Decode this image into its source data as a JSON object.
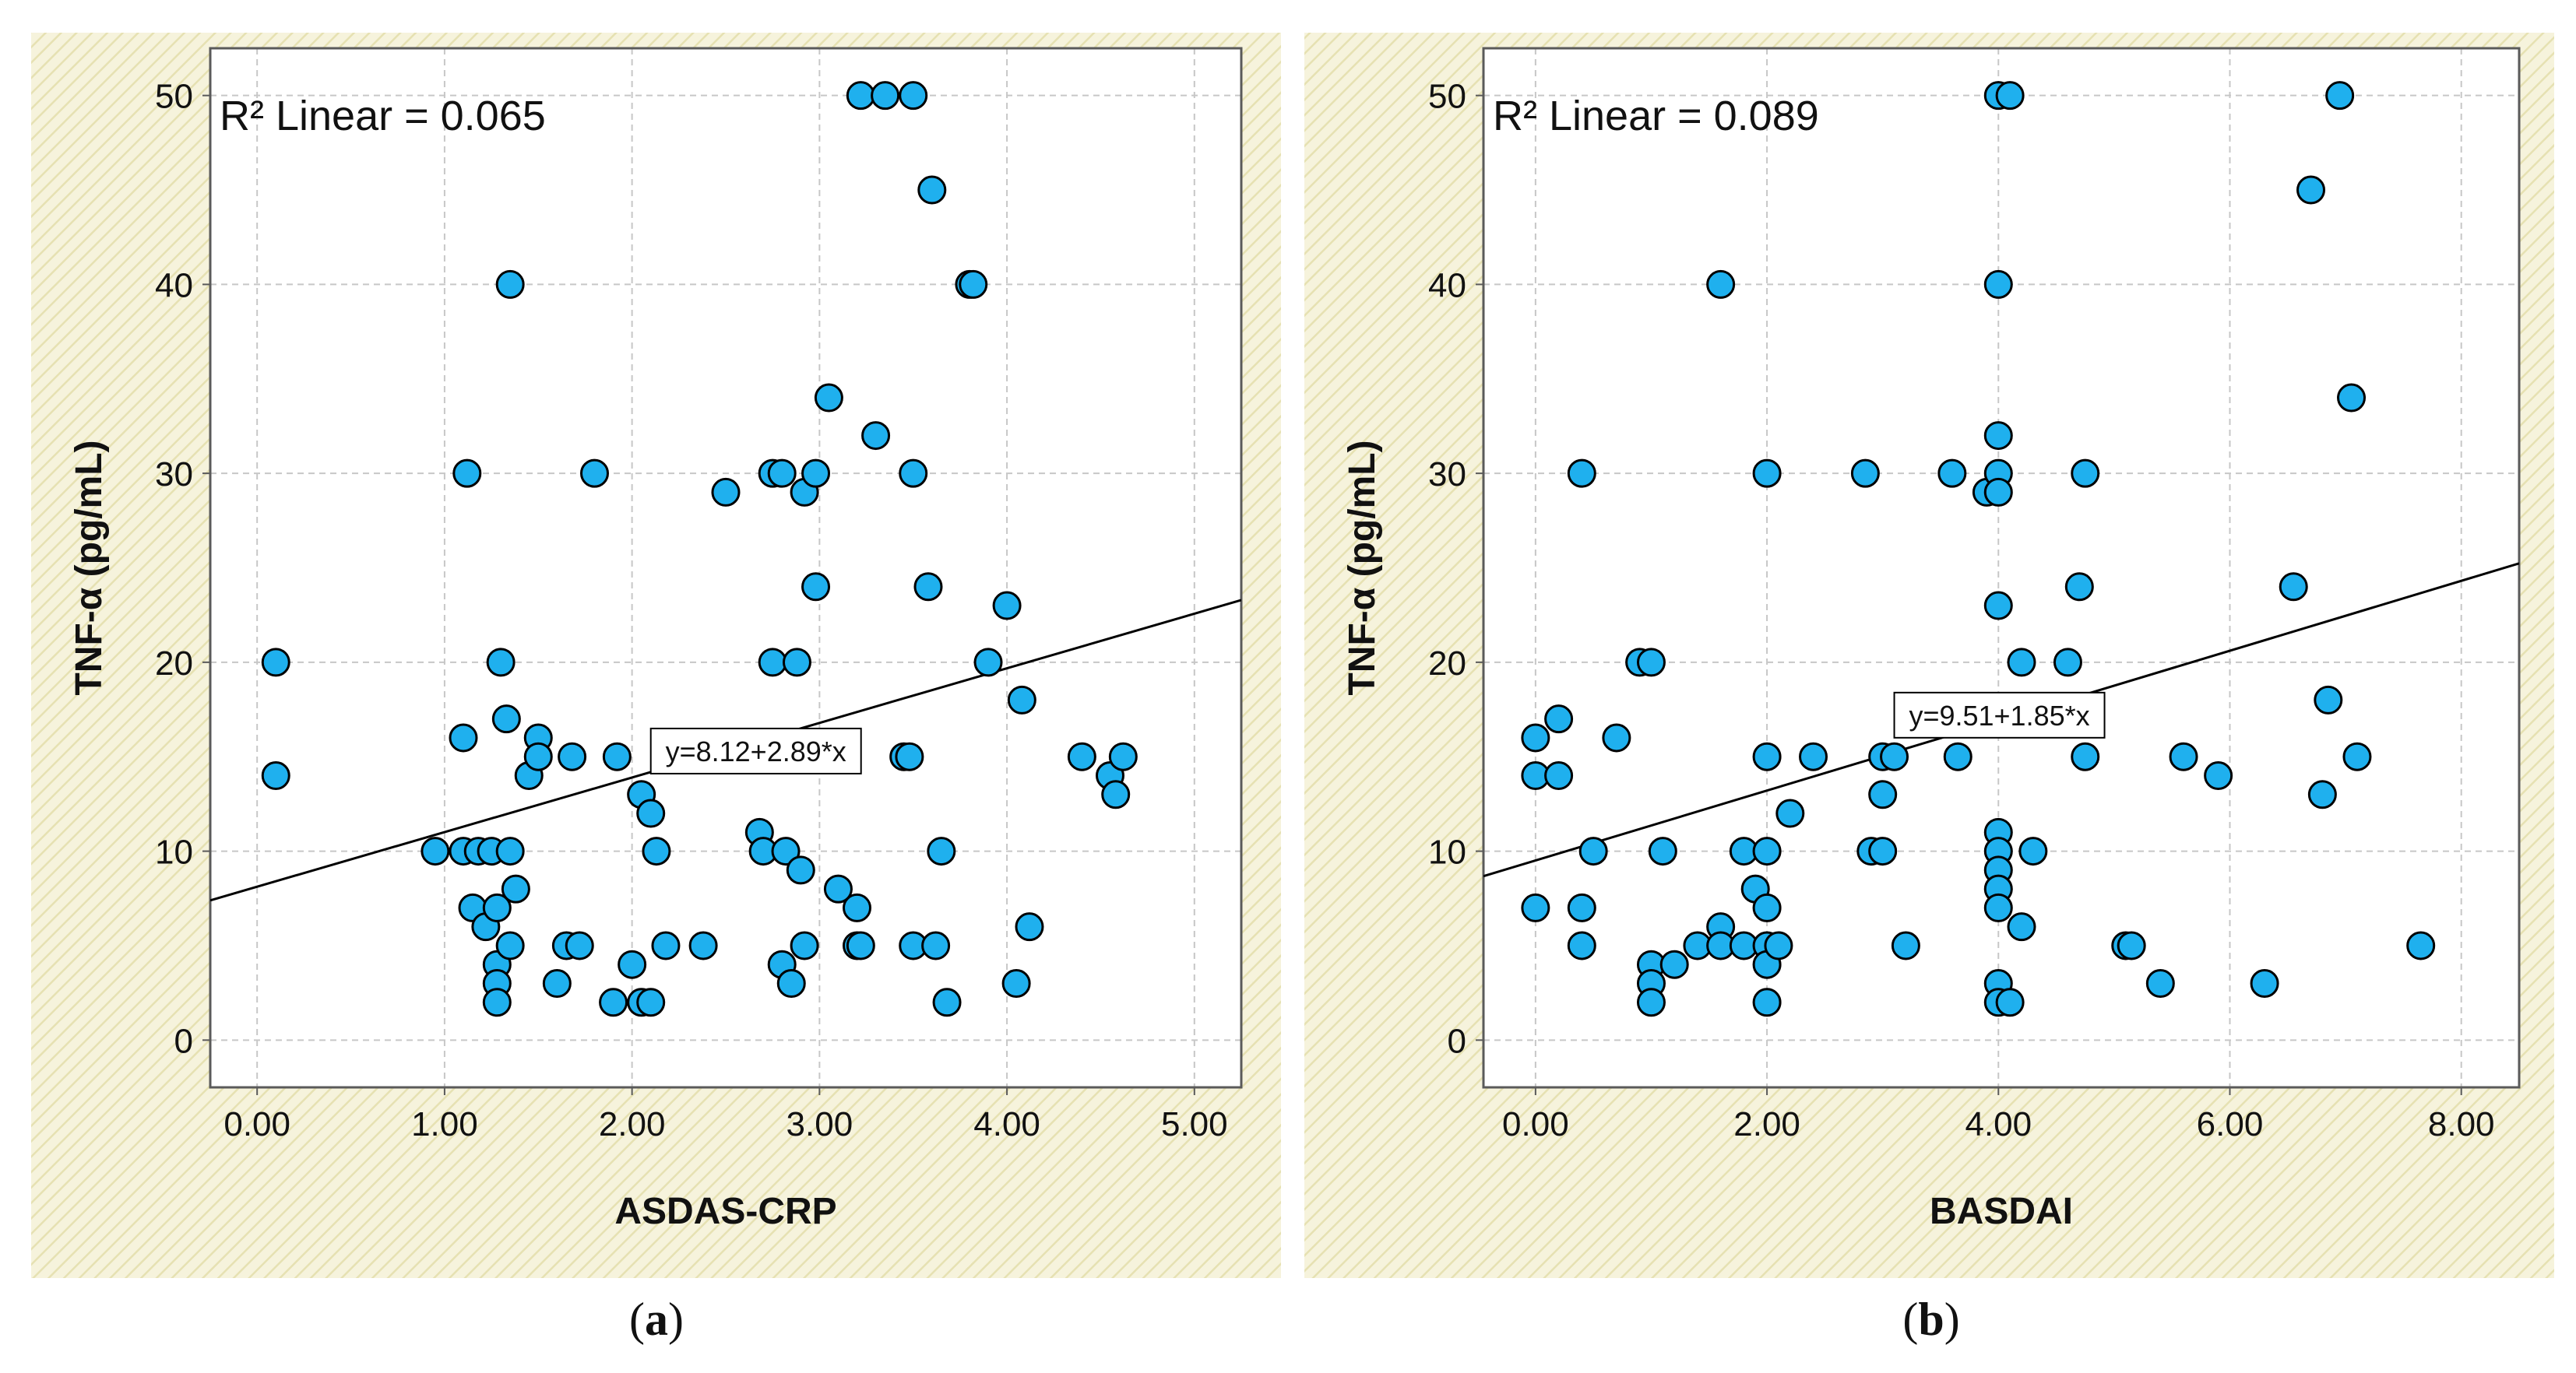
{
  "colors": {
    "panel_bg": "#f6f3dc",
    "hatch": "#e8e4b8",
    "plot_bg": "#ffffff",
    "grid": "#c7c7c7",
    "frame": "#5a5a5a",
    "marker_fill": "#1fb0ee",
    "marker_stroke": "#000000",
    "fit_line": "#000000"
  },
  "chart_data": [
    {
      "type": "scatter",
      "panel_label": "(a)",
      "title": "",
      "xlabel": "ASDAS-CRP",
      "ylabel": "TNF-α (pg/mL)",
      "xlim": [
        -0.25,
        5.25
      ],
      "ylim": [
        -2.5,
        52.5
      ],
      "xticks": [
        0,
        1,
        2,
        3,
        4,
        5
      ],
      "xtick_labels": [
        "0.00",
        "1.00",
        "2.00",
        "3.00",
        "4.00",
        "5.00"
      ],
      "yticks": [
        0,
        10,
        20,
        30,
        40,
        50
      ],
      "ytick_labels": [
        "0",
        "10",
        "20",
        "30",
        "40",
        "50"
      ],
      "grid": true,
      "r2_label": "R² Linear = 0.065",
      "fit": {
        "label": "y=8.12+2.89*x",
        "intercept": 8.12,
        "slope": 2.89,
        "label_at": [
          2.1,
          15.3
        ]
      },
      "points": [
        [
          0.1,
          20
        ],
        [
          0.1,
          14
        ],
        [
          0.95,
          10
        ],
        [
          1.1,
          10
        ],
        [
          1.1,
          16
        ],
        [
          1.12,
          30
        ],
        [
          1.15,
          7
        ],
        [
          1.18,
          10
        ],
        [
          1.22,
          6
        ],
        [
          1.25,
          10
        ],
        [
          1.28,
          7
        ],
        [
          1.28,
          4
        ],
        [
          1.28,
          3
        ],
        [
          1.28,
          2
        ],
        [
          1.3,
          20
        ],
        [
          1.33,
          17
        ],
        [
          1.35,
          10
        ],
        [
          1.35,
          5
        ],
        [
          1.35,
          40
        ],
        [
          1.38,
          8
        ],
        [
          1.45,
          14
        ],
        [
          1.5,
          16
        ],
        [
          1.5,
          15
        ],
        [
          1.6,
          3
        ],
        [
          1.65,
          5
        ],
        [
          1.68,
          15
        ],
        [
          1.72,
          5
        ],
        [
          1.8,
          30
        ],
        [
          1.9,
          2
        ],
        [
          1.92,
          15
        ],
        [
          2.0,
          4
        ],
        [
          2.05,
          13
        ],
        [
          2.05,
          2
        ],
        [
          2.1,
          12
        ],
        [
          2.1,
          2
        ],
        [
          2.13,
          10
        ],
        [
          2.18,
          5
        ],
        [
          2.38,
          5
        ],
        [
          2.5,
          29
        ],
        [
          2.68,
          11
        ],
        [
          2.7,
          10
        ],
        [
          2.75,
          20
        ],
        [
          2.75,
          30
        ],
        [
          2.8,
          30
        ],
        [
          2.8,
          4
        ],
        [
          2.82,
          10
        ],
        [
          2.85,
          3
        ],
        [
          2.88,
          20
        ],
        [
          2.9,
          9
        ],
        [
          2.92,
          29
        ],
        [
          2.92,
          5
        ],
        [
          2.98,
          24
        ],
        [
          2.98,
          30
        ],
        [
          3.05,
          34
        ],
        [
          3.1,
          8
        ],
        [
          3.2,
          7
        ],
        [
          3.2,
          5
        ],
        [
          3.22,
          5
        ],
        [
          3.22,
          50
        ],
        [
          3.3,
          32
        ],
        [
          3.35,
          50
        ],
        [
          3.45,
          15
        ],
        [
          3.48,
          15
        ],
        [
          3.5,
          30
        ],
        [
          3.5,
          50
        ],
        [
          3.5,
          5
        ],
        [
          3.58,
          24
        ],
        [
          3.6,
          45
        ],
        [
          3.62,
          5
        ],
        [
          3.65,
          10
        ],
        [
          3.68,
          2
        ],
        [
          3.8,
          40
        ],
        [
          3.82,
          40
        ],
        [
          3.9,
          20
        ],
        [
          4.0,
          23
        ],
        [
          4.05,
          3
        ],
        [
          4.08,
          18
        ],
        [
          4.12,
          6
        ],
        [
          4.4,
          15
        ],
        [
          4.55,
          14
        ],
        [
          4.58,
          13
        ],
        [
          4.62,
          15
        ]
      ]
    },
    {
      "type": "scatter",
      "panel_label": "(b)",
      "title": "",
      "xlabel": "BASDAI",
      "ylabel": "TNF-α (pg/mL)",
      "xlim": [
        -0.45,
        8.5
      ],
      "ylim": [
        -2.5,
        52.5
      ],
      "xticks": [
        0,
        2,
        4,
        6,
        8
      ],
      "xtick_labels": [
        "0.00",
        "2.00",
        "4.00",
        "6.00",
        "8.00"
      ],
      "yticks": [
        0,
        10,
        20,
        30,
        40,
        50
      ],
      "ytick_labels": [
        "0",
        "10",
        "20",
        "30",
        "40",
        "50"
      ],
      "grid": true,
      "r2_label": "R² Linear = 0.089",
      "fit": {
        "label": "y=9.51+1.85*x",
        "intercept": 9.51,
        "slope": 1.85,
        "label_at": [
          3.1,
          17.2
        ]
      },
      "points": [
        [
          0.0,
          16
        ],
        [
          0.0,
          14
        ],
        [
          0.0,
          7
        ],
        [
          0.2,
          17
        ],
        [
          0.2,
          14
        ],
        [
          0.4,
          30
        ],
        [
          0.4,
          7
        ],
        [
          0.4,
          5
        ],
        [
          0.5,
          10
        ],
        [
          0.7,
          16
        ],
        [
          0.9,
          20
        ],
        [
          1.0,
          20
        ],
        [
          1.0,
          4
        ],
        [
          1.0,
          3
        ],
        [
          1.0,
          2
        ],
        [
          1.1,
          10
        ],
        [
          1.2,
          4
        ],
        [
          1.4,
          5
        ],
        [
          1.6,
          40
        ],
        [
          1.6,
          6
        ],
        [
          1.6,
          5
        ],
        [
          1.8,
          10
        ],
        [
          1.8,
          5
        ],
        [
          1.9,
          8
        ],
        [
          2.0,
          30
        ],
        [
          2.0,
          15
        ],
        [
          2.0,
          10
        ],
        [
          2.0,
          7
        ],
        [
          2.0,
          5
        ],
        [
          2.0,
          4
        ],
        [
          2.0,
          2
        ],
        [
          2.1,
          5
        ],
        [
          2.2,
          12
        ],
        [
          2.4,
          15
        ],
        [
          2.85,
          30
        ],
        [
          2.9,
          10
        ],
        [
          3.0,
          15
        ],
        [
          3.0,
          13
        ],
        [
          3.0,
          10
        ],
        [
          3.1,
          15
        ],
        [
          3.2,
          5
        ],
        [
          3.6,
          30
        ],
        [
          3.65,
          15
        ],
        [
          3.9,
          29
        ],
        [
          4.0,
          50
        ],
        [
          4.0,
          40
        ],
        [
          4.0,
          32
        ],
        [
          4.0,
          30
        ],
        [
          4.0,
          29
        ],
        [
          4.0,
          23
        ],
        [
          4.0,
          11
        ],
        [
          4.0,
          10
        ],
        [
          4.0,
          9
        ],
        [
          4.0,
          8
        ],
        [
          4.0,
          7
        ],
        [
          4.0,
          3
        ],
        [
          4.0,
          2
        ],
        [
          4.1,
          50
        ],
        [
          4.1,
          2
        ],
        [
          4.2,
          20
        ],
        [
          4.2,
          6
        ],
        [
          4.3,
          10
        ],
        [
          4.6,
          20
        ],
        [
          4.7,
          24
        ],
        [
          4.75,
          30
        ],
        [
          4.75,
          15
        ],
        [
          5.1,
          5
        ],
        [
          5.15,
          5
        ],
        [
          5.4,
          3
        ],
        [
          5.6,
          15
        ],
        [
          5.9,
          14
        ],
        [
          6.3,
          3
        ],
        [
          6.55,
          24
        ],
        [
          6.7,
          45
        ],
        [
          6.8,
          13
        ],
        [
          6.85,
          18
        ],
        [
          6.95,
          50
        ],
        [
          7.05,
          34
        ],
        [
          7.1,
          15
        ],
        [
          7.65,
          5
        ]
      ]
    }
  ]
}
